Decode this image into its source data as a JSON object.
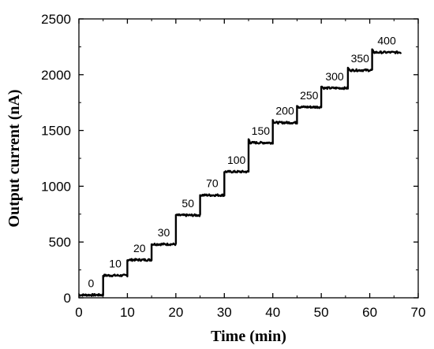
{
  "chart_data": {
    "type": "line",
    "title": "",
    "xlabel": "Time (min)",
    "ylabel": "Output current (nA)",
    "xlim": [
      0,
      70
    ],
    "ylim": [
      0,
      2500
    ],
    "xticks": [
      0,
      10,
      20,
      30,
      40,
      50,
      60,
      70
    ],
    "yticks": [
      0,
      500,
      1000,
      1500,
      2000,
      2500
    ],
    "grid": false,
    "legend": "none",
    "line_color": "#000000",
    "steps": [
      {
        "label": "0",
        "t_start": 0.0,
        "t_end": 5.0,
        "current": 25
      },
      {
        "label": "10",
        "t_start": 5.0,
        "t_end": 10.0,
        "current": 200
      },
      {
        "label": "20",
        "t_start": 10.0,
        "t_end": 15.0,
        "current": 340
      },
      {
        "label": "30",
        "t_start": 15.0,
        "t_end": 20.0,
        "current": 480
      },
      {
        "label": "50",
        "t_start": 20.0,
        "t_end": 25.0,
        "current": 740
      },
      {
        "label": "70",
        "t_start": 25.0,
        "t_end": 30.0,
        "current": 920
      },
      {
        "label": "100",
        "t_start": 30.0,
        "t_end": 35.0,
        "current": 1130
      },
      {
        "label": "150",
        "t_start": 35.0,
        "t_end": 40.0,
        "current": 1390
      },
      {
        "label": "200",
        "t_start": 40.0,
        "t_end": 45.0,
        "current": 1570
      },
      {
        "label": "250",
        "t_start": 45.0,
        "t_end": 50.0,
        "current": 1710
      },
      {
        "label": "300",
        "t_start": 50.0,
        "t_end": 55.5,
        "current": 1880
      },
      {
        "label": "350",
        "t_start": 55.5,
        "t_end": 60.5,
        "current": 2040
      },
      {
        "label": "400",
        "t_start": 60.5,
        "t_end": 66.5,
        "current": 2200
      }
    ]
  }
}
